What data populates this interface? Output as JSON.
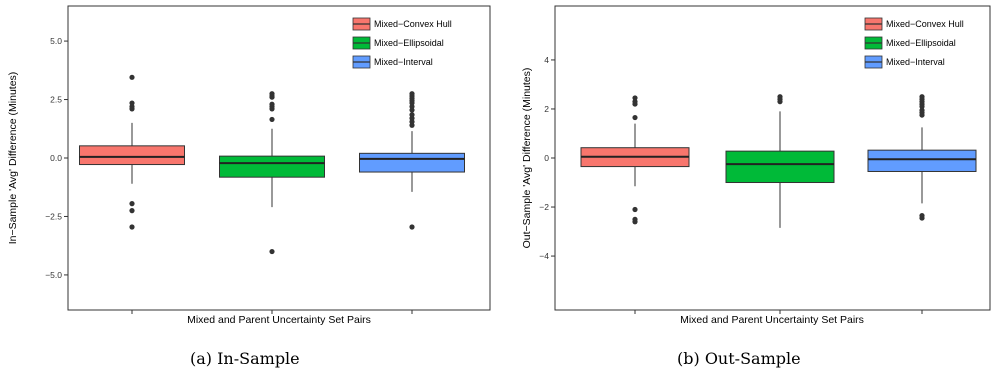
{
  "chart_data": [
    {
      "type": "box",
      "xlabel": "Mixed and Parent Uncertainty Set Pairs",
      "ylabel": "In−Sample 'Avg' Difference (Minutes)",
      "ylim": [
        -6.5,
        6.5
      ],
      "yticks": [
        -5.0,
        -2.5,
        0.0,
        2.5,
        5.0
      ],
      "ytick_labels": [
        "−5.0",
        "−2.5",
        "0.0",
        "2.5",
        "5.0"
      ],
      "legend_position": "top-right",
      "series": [
        {
          "name": "Mixed−Convex Hull",
          "color": "#F8766D",
          "q1": -0.28,
          "median": 0.05,
          "q3": 0.52,
          "whisker_low": -1.1,
          "whisker_high": 1.5,
          "outliers": [
            3.45,
            2.35,
            2.2,
            2.1,
            -1.95,
            -2.25,
            -2.95
          ]
        },
        {
          "name": "Mixed−Ellipsoidal",
          "color": "#00BA38",
          "q1": -0.82,
          "median": -0.22,
          "q3": 0.08,
          "whisker_low": -2.1,
          "whisker_high": 1.25,
          "outliers": [
            2.75,
            2.65,
            2.6,
            2.3,
            2.2,
            2.1,
            1.65,
            -4.0
          ]
        },
        {
          "name": "Mixed−Interval",
          "color": "#619CFF",
          "q1": -0.6,
          "median": -0.04,
          "q3": 0.2,
          "whisker_low": -1.45,
          "whisker_high": 1.15,
          "outliers": [
            2.75,
            2.65,
            2.55,
            2.45,
            2.35,
            2.2,
            2.05,
            1.85,
            1.7,
            1.55,
            1.4,
            -2.95
          ]
        }
      ]
    },
    {
      "type": "box",
      "xlabel": "Mixed and Parent Uncertainty Set Pairs",
      "ylabel": "Out−Sample 'Avg' Difference (Minutes)",
      "ylim": [
        -6.2,
        6.2
      ],
      "yticks": [
        -4,
        -2,
        0,
        2,
        4
      ],
      "ytick_labels": [
        "−4",
        "−2",
        "0",
        "2",
        "4"
      ],
      "legend_position": "top-right",
      "series": [
        {
          "name": "Mixed−Convex Hull",
          "color": "#F8766D",
          "q1": -0.35,
          "median": 0.05,
          "q3": 0.42,
          "whisker_low": -1.15,
          "whisker_high": 1.4,
          "outliers": [
            2.45,
            2.3,
            2.2,
            1.65,
            -2.1,
            -2.5,
            -2.6
          ]
        },
        {
          "name": "Mixed−Ellipsoidal",
          "color": "#00BA38",
          "q1": -1.0,
          "median": -0.25,
          "q3": 0.28,
          "whisker_low": -2.85,
          "whisker_high": 1.9,
          "outliers": [
            2.5,
            2.4,
            2.3
          ]
        },
        {
          "name": "Mixed−Interval",
          "color": "#619CFF",
          "q1": -0.55,
          "median": -0.05,
          "q3": 0.32,
          "whisker_low": -1.85,
          "whisker_high": 1.25,
          "outliers": [
            2.5,
            2.4,
            2.3,
            2.2,
            2.1,
            1.95,
            1.85,
            1.75,
            -2.35,
            -2.45
          ]
        }
      ]
    }
  ],
  "captions": [
    "(a) In-Sample",
    "(b) Out-Sample"
  ]
}
